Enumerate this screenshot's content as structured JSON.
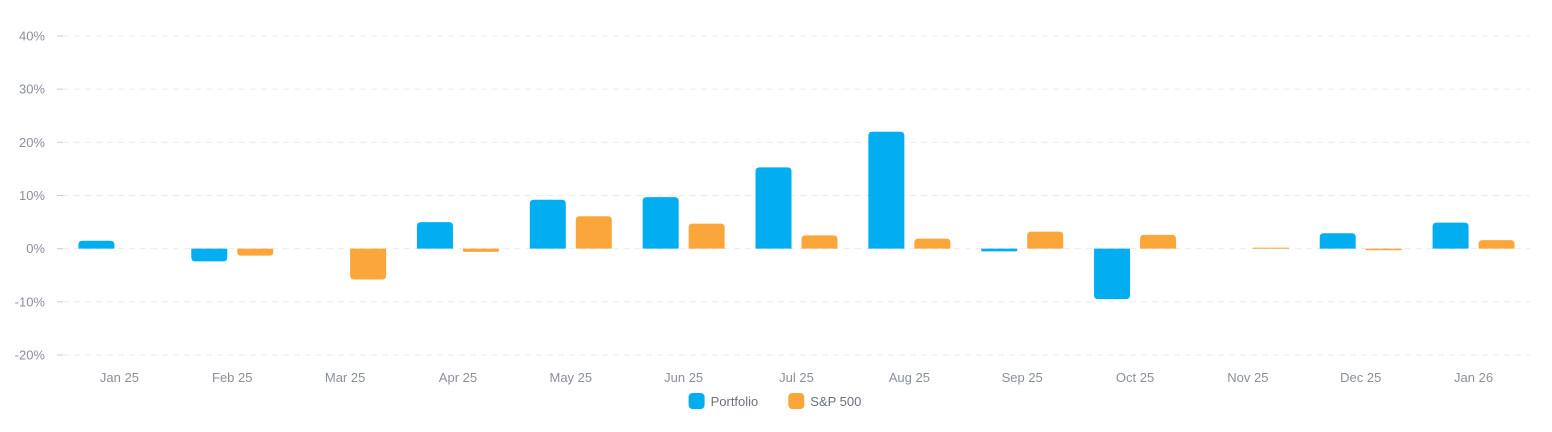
{
  "chart_data": {
    "type": "bar",
    "title": "",
    "xlabel": "",
    "ylabel": "",
    "ylim": [
      -20,
      40
    ],
    "yticks": [
      40,
      30,
      20,
      10,
      0,
      -10,
      -20
    ],
    "ytick_suffix": "%",
    "grid": true,
    "legend_position": "bottom-center",
    "categories": [
      "Jan 25",
      "Feb 25",
      "Mar 25",
      "Apr 25",
      "May 25",
      "Jun 25",
      "Jul 25",
      "Aug 25",
      "Sep 25",
      "Oct 25",
      "Nov 25",
      "Dec 25",
      "Jan 26"
    ],
    "series": [
      {
        "name": "Portfolio",
        "color": "#03aef0",
        "values": [
          1.5,
          -2.4,
          0,
          5.0,
          9.2,
          9.7,
          15.3,
          22.0,
          -0.5,
          -9.5,
          0,
          2.9,
          4.9
        ]
      },
      {
        "name": "S&P 500",
        "color": "#fba63b",
        "values": [
          0,
          -1.3,
          -5.8,
          -0.6,
          6.1,
          4.7,
          2.5,
          1.9,
          3.2,
          2.6,
          0.2,
          -0.3,
          1.6
        ]
      }
    ]
  }
}
